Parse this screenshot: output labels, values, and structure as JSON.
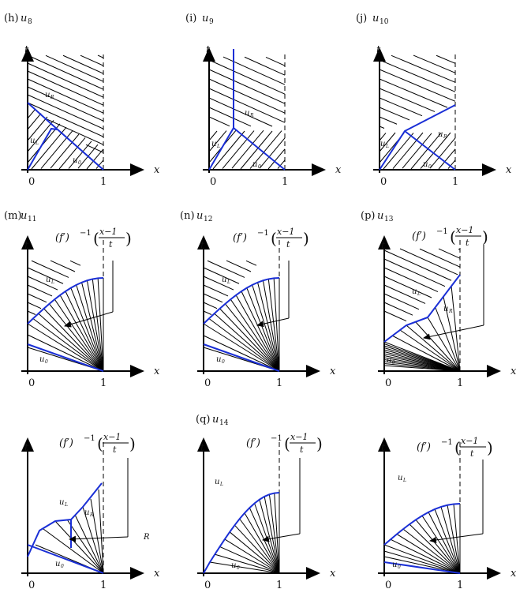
{
  "panels": [
    {
      "letter": "(h)",
      "name": "u",
      "sub": "8"
    },
    {
      "letter": "(i)",
      "name": "u",
      "sub": "9"
    },
    {
      "letter": "(j)",
      "name": "u",
      "sub": "10"
    },
    {
      "letter": "(m)",
      "name": "u",
      "sub": "11"
    },
    {
      "letter": "(n)",
      "name": "u",
      "sub": "12"
    },
    {
      "letter": "(p)",
      "name": "u",
      "sub": "13"
    },
    {
      "letter": "",
      "name": "",
      "sub": ""
    },
    {
      "letter": "(q)",
      "name": "u",
      "sub": "14"
    },
    {
      "letter": "",
      "name": "",
      "sub": ""
    }
  ],
  "axes": {
    "x": "x",
    "t": "t",
    "zero": "0",
    "one": "1"
  },
  "regions": {
    "base": "u",
    "left": "L",
    "right": "R",
    "zero": "0"
  },
  "formula": {
    "lead": "(f′)",
    "exp": "−1",
    "num": "x−1",
    "den": "t"
  },
  "stray_mark": "R",
  "colors": {
    "curve": "#1a2fd6",
    "ink": "#000000"
  }
}
